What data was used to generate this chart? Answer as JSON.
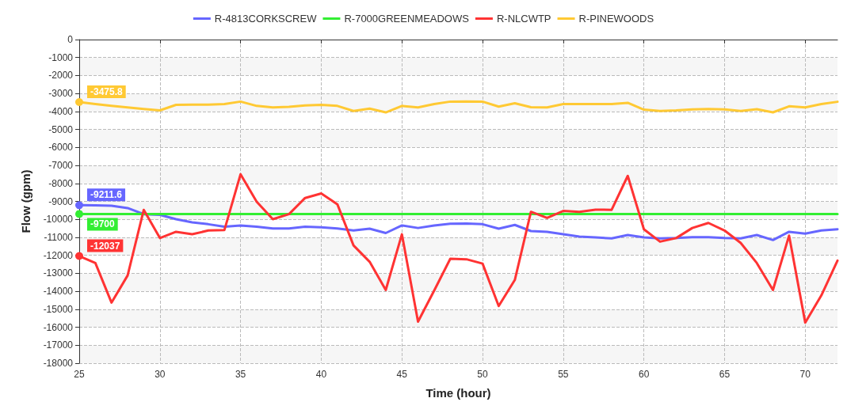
{
  "chart_data": {
    "type": "line",
    "xlabel": "Time (hour)",
    "ylabel": "Flow (gpm)",
    "x": [
      25,
      26,
      27,
      28,
      29,
      30,
      31,
      32,
      33,
      34,
      35,
      36,
      37,
      38,
      39,
      40,
      41,
      42,
      43,
      44,
      45,
      46,
      47,
      48,
      49,
      50,
      51,
      52,
      53,
      54,
      55,
      56,
      57,
      58,
      59,
      60,
      61,
      62,
      63,
      64,
      65,
      66,
      67,
      68,
      69,
      70,
      71,
      72
    ],
    "series": [
      {
        "name": "R-4813CORKSCREW",
        "color": "#6666ff",
        "values": [
          -9211.6,
          -9220,
          -9240,
          -9370,
          -9710,
          -9750,
          -9990,
          -10170,
          -10270,
          -10410,
          -10340,
          -10410,
          -10510,
          -10510,
          -10410,
          -10440,
          -10510,
          -10620,
          -10520,
          -10760,
          -10340,
          -10480,
          -10340,
          -10240,
          -10230,
          -10270,
          -10520,
          -10310,
          -10650,
          -10690,
          -10830,
          -10960,
          -11000,
          -11060,
          -10870,
          -11000,
          -11060,
          -11040,
          -10990,
          -10990,
          -11040,
          -11060,
          -10870,
          -11150,
          -10690,
          -10790,
          -10620,
          -10550
        ],
        "value_labels": [
          "-9211.6",
          null,
          null,
          null,
          null,
          null,
          null,
          null,
          null,
          null,
          null,
          null,
          null,
          null,
          null,
          null,
          null,
          null,
          null,
          null,
          null,
          null,
          null,
          null,
          null,
          null,
          null,
          null,
          null,
          null,
          null,
          null,
          null,
          null,
          null,
          null,
          null,
          null,
          null,
          null,
          null,
          null,
          null,
          null,
          null,
          null,
          null,
          null
        ]
      },
      {
        "name": "R-7000GREENMEADOWS",
        "color": "#33ee33",
        "values": [
          -9700,
          -9700,
          -9700,
          -9700,
          -9700,
          -9700,
          -9700,
          -9700,
          -9700,
          -9700,
          -9700,
          -9700,
          -9700,
          -9700,
          -9700,
          -9700,
          -9700,
          -9700,
          -9700,
          -9700,
          -9700,
          -9700,
          -9700,
          -9700,
          -9700,
          -9700,
          -9700,
          -9700,
          -9700,
          -9700,
          -9700,
          -9700,
          -9700,
          -9700,
          -9700,
          -9700,
          -9700,
          -9700,
          -9700,
          -9700,
          -9700,
          -9700,
          -9700,
          -9700,
          -9700,
          -9700,
          -9700,
          -9700
        ],
        "value_labels": [
          "-9700",
          null,
          null,
          null,
          null,
          null,
          null,
          null,
          null,
          null,
          null,
          null,
          null,
          null,
          null,
          null,
          null,
          null,
          null,
          null,
          null,
          null,
          null,
          null,
          null,
          null,
          null,
          null,
          null,
          null,
          null,
          null,
          null,
          null,
          null,
          null,
          null,
          null,
          null,
          null,
          null,
          null,
          null,
          null,
          null,
          null,
          null,
          null
        ]
      },
      {
        "name": "R-NLCWTP",
        "color": "#ff3333",
        "values": [
          -12037,
          -12430,
          -14630,
          -13120,
          -9470,
          -11040,
          -10690,
          -10830,
          -10620,
          -10590,
          -7490,
          -9020,
          -9990,
          -9710,
          -8810,
          -8560,
          -9160,
          -11450,
          -12360,
          -13930,
          -10830,
          -15690,
          -13960,
          -12190,
          -12220,
          -12460,
          -14820,
          -13370,
          -9580,
          -9920,
          -9530,
          -9580,
          -9460,
          -9470,
          -7580,
          -10550,
          -11240,
          -11040,
          -10480,
          -10200,
          -10620,
          -11310,
          -12430,
          -13930,
          -10900,
          -15740,
          -14230,
          -12290
        ],
        "value_labels": [
          "-12037",
          null,
          null,
          null,
          null,
          null,
          null,
          null,
          null,
          null,
          null,
          null,
          null,
          null,
          null,
          null,
          null,
          null,
          null,
          null,
          null,
          null,
          null,
          null,
          null,
          null,
          null,
          null,
          null,
          null,
          null,
          null,
          null,
          null,
          null,
          null,
          null,
          null,
          null,
          null,
          null,
          null,
          null,
          null,
          null,
          null,
          null,
          null
        ]
      },
      {
        "name": "R-PINEWOODS",
        "color": "#ffc933",
        "values": [
          -3475.8,
          -3590,
          -3690,
          -3770,
          -3860,
          -3940,
          -3630,
          -3620,
          -3620,
          -3590,
          -3450,
          -3690,
          -3770,
          -3740,
          -3660,
          -3630,
          -3690,
          -3970,
          -3840,
          -4050,
          -3690,
          -3770,
          -3590,
          -3450,
          -3440,
          -3450,
          -3730,
          -3540,
          -3760,
          -3770,
          -3590,
          -3590,
          -3590,
          -3590,
          -3520,
          -3900,
          -3970,
          -3940,
          -3880,
          -3860,
          -3880,
          -3970,
          -3870,
          -4050,
          -3710,
          -3770,
          -3590,
          -3460
        ],
        "value_labels": [
          "-3475.8",
          null,
          null,
          null,
          null,
          null,
          null,
          null,
          null,
          null,
          null,
          null,
          null,
          null,
          null,
          null,
          null,
          null,
          null,
          null,
          null,
          null,
          null,
          null,
          null,
          null,
          null,
          null,
          null,
          null,
          null,
          null,
          null,
          null,
          null,
          null,
          null,
          null,
          null,
          null,
          null,
          null,
          null,
          null,
          null,
          null,
          null,
          null
        ]
      }
    ],
    "xlim": [
      25,
      72
    ],
    "xticks": [
      25,
      30,
      35,
      40,
      45,
      50,
      55,
      60,
      65,
      70
    ],
    "ylim": [
      -18000,
      0
    ],
    "yticks": [
      -18000,
      -17000,
      -16000,
      -15000,
      -14000,
      -13000,
      -12000,
      -11000,
      -10000,
      -9000,
      -8000,
      -7000,
      -6000,
      -5000,
      -4000,
      -3000,
      -2000,
      -1000,
      0
    ],
    "grid": true,
    "legend": "top",
    "marker": "none",
    "line_style": "solid"
  }
}
